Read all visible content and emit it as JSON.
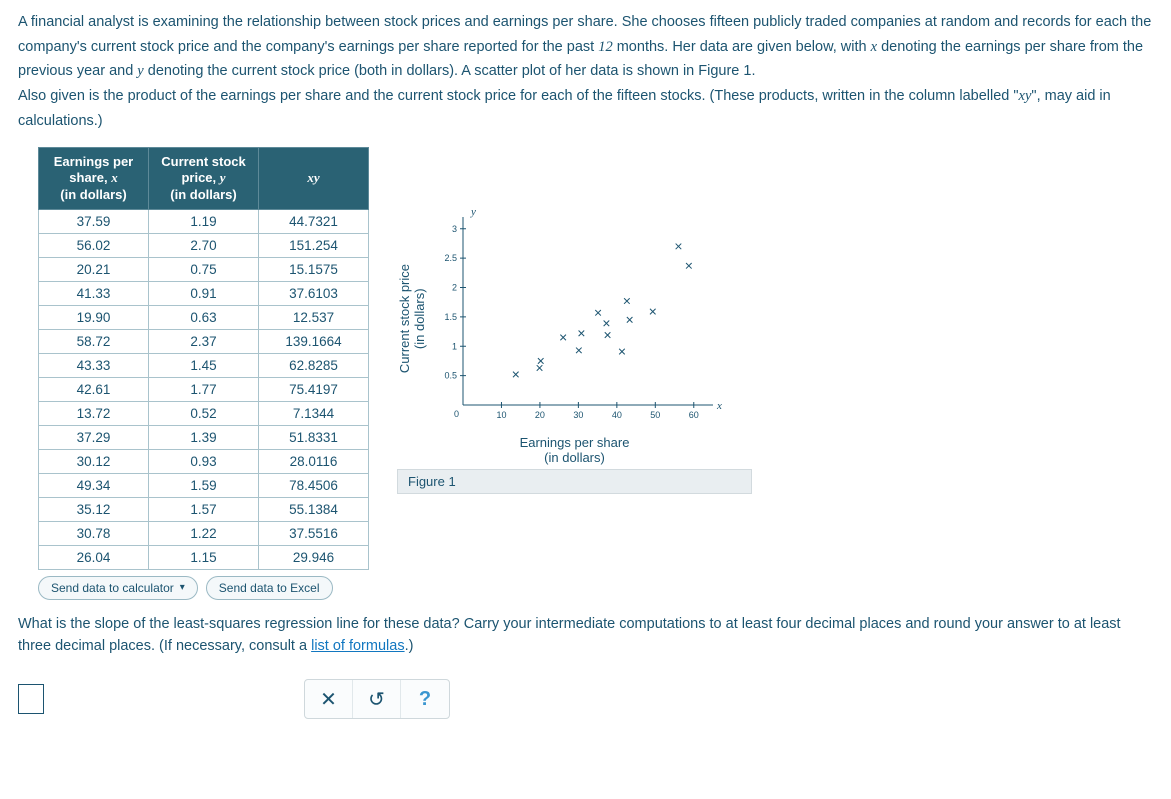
{
  "prompt": {
    "p1a": "A financial analyst is examining the relationship between stock prices and earnings per share. She chooses fifteen publicly traded companies at random and records for each the company's current stock price and the company's earnings per share reported for the past ",
    "p1b": "12",
    "p1c": " months. Her data are given below, with ",
    "p1d": "x",
    "p1e": " denoting the earnings per share from the previous year and ",
    "p1f": "y",
    "p1g": " denoting the current stock price (both in dollars). A scatter plot of her data is shown in Figure 1.",
    "p2a": "Also given is the product of the earnings per share and the current stock price for each of the fifteen stocks. (These products, written in the column labelled \"",
    "p2b": "xy",
    "p2c": "\", may aid in calculations.)"
  },
  "table": {
    "headers": {
      "h1_l1": "Earnings per",
      "h1_l2": "share, ",
      "h1_var": "x",
      "h1_l3": "(in dollars)",
      "h2_l1": "Current stock",
      "h2_l2": "price, ",
      "h2_var": "y",
      "h2_l3": "(in dollars)",
      "h3": "xy"
    },
    "rows": [
      {
        "x": "37.59",
        "y": "1.19",
        "xy": "44.7321"
      },
      {
        "x": "56.02",
        "y": "2.70",
        "xy": "151.254"
      },
      {
        "x": "20.21",
        "y": "0.75",
        "xy": "15.1575"
      },
      {
        "x": "41.33",
        "y": "0.91",
        "xy": "37.6103"
      },
      {
        "x": "19.90",
        "y": "0.63",
        "xy": "12.537"
      },
      {
        "x": "58.72",
        "y": "2.37",
        "xy": "139.1664"
      },
      {
        "x": "43.33",
        "y": "1.45",
        "xy": "62.8285"
      },
      {
        "x": "42.61",
        "y": "1.77",
        "xy": "75.4197"
      },
      {
        "x": "13.72",
        "y": "0.52",
        "xy": "7.1344"
      },
      {
        "x": "37.29",
        "y": "1.39",
        "xy": "51.8331"
      },
      {
        "x": "30.12",
        "y": "0.93",
        "xy": "28.0116"
      },
      {
        "x": "49.34",
        "y": "1.59",
        "xy": "78.4506"
      },
      {
        "x": "35.12",
        "y": "1.57",
        "xy": "55.1384"
      },
      {
        "x": "30.78",
        "y": "1.22",
        "xy": "37.5516"
      },
      {
        "x": "26.04",
        "y": "1.15",
        "xy": "29.946"
      }
    ]
  },
  "buttons": {
    "send_calc": "Send data to calculator",
    "send_excel": "Send data to Excel"
  },
  "chart": {
    "type": "scatter",
    "ylabel_l1": "Current stock price",
    "ylabel_l2": "(in dollars)",
    "xlabel_l1": "Earnings per share",
    "xlabel_l2": "(in dollars)",
    "y_symbol": "y",
    "x_symbol": "x",
    "caption": "Figure 1",
    "xlim": [
      0,
      65
    ],
    "ylim": [
      0,
      3.2
    ],
    "xticks": [
      10,
      20,
      30,
      40,
      50,
      60
    ],
    "yticks": [
      0.5,
      1,
      1.5,
      2,
      2.5,
      3
    ],
    "origin_label": "0",
    "marker": "x",
    "marker_color": "#1c5470",
    "axis_color": "#1c5470",
    "background_color": "#ffffff",
    "tick_fontsize": 9,
    "points": [
      {
        "x": 37.59,
        "y": 1.19
      },
      {
        "x": 56.02,
        "y": 2.7
      },
      {
        "x": 20.21,
        "y": 0.75
      },
      {
        "x": 41.33,
        "y": 0.91
      },
      {
        "x": 19.9,
        "y": 0.63
      },
      {
        "x": 58.72,
        "y": 2.37
      },
      {
        "x": 43.33,
        "y": 1.45
      },
      {
        "x": 42.61,
        "y": 1.77
      },
      {
        "x": 13.72,
        "y": 0.52
      },
      {
        "x": 37.29,
        "y": 1.39
      },
      {
        "x": 30.12,
        "y": 0.93
      },
      {
        "x": 49.34,
        "y": 1.59
      },
      {
        "x": 35.12,
        "y": 1.57
      },
      {
        "x": 30.78,
        "y": 1.22
      },
      {
        "x": 26.04,
        "y": 1.15
      }
    ]
  },
  "question": {
    "text_a": "What is the slope of the least-squares regression line for these data? Carry your intermediate computations to at least four decimal places and round your answer to at least three decimal places. (If necessary, consult a ",
    "link": "list of formulas",
    "text_b": ".)"
  },
  "controls": {
    "clear": "✕",
    "reset": "↺",
    "help": "?"
  }
}
